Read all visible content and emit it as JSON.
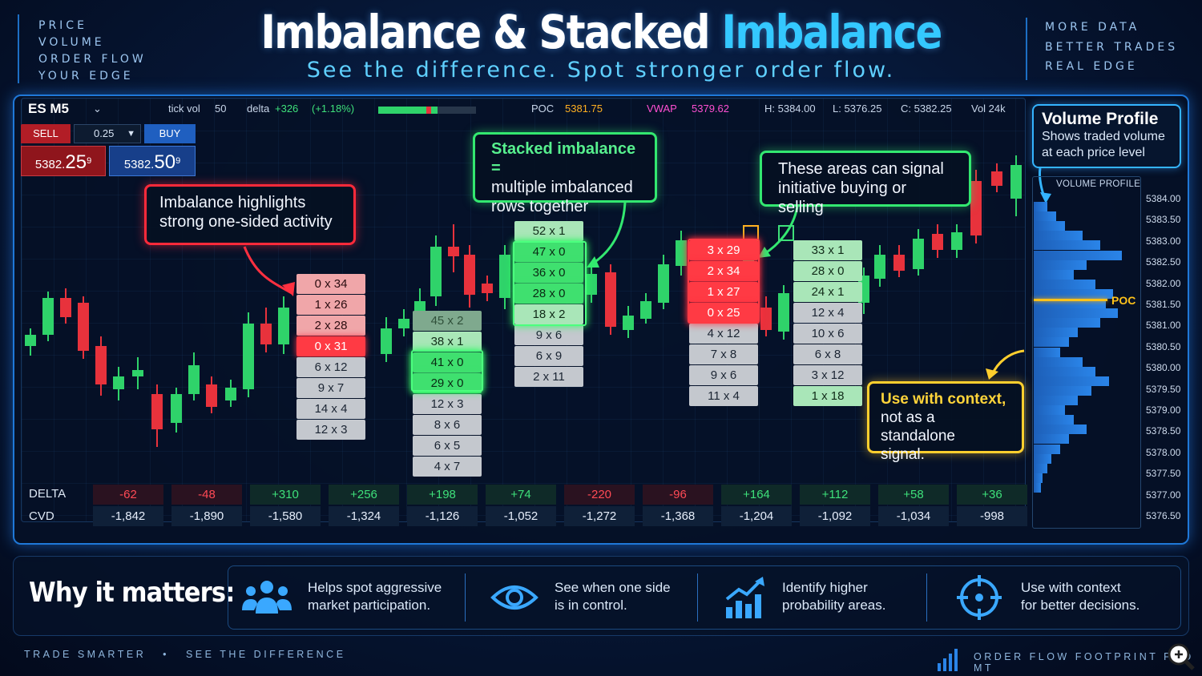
{
  "header": {
    "left_list": [
      "PRICE",
      "VOLUME",
      "ORDER FLOW",
      "YOUR EDGE"
    ],
    "title_main": "Imbalance & Stacked ",
    "title_accent": "Imbalance",
    "subtitle": "See the difference. Spot stronger order flow.",
    "right_list": [
      "MORE DATA",
      "BETTER TRADES",
      "REAL EDGE"
    ]
  },
  "toolbar": {
    "symbol": "ES M5",
    "tick_vol_label": "tick vol",
    "tick_vol_value": "50",
    "delta_label": "delta",
    "delta_value": "+326",
    "delta_pct": "(+1.18%)",
    "poc_label": "POC",
    "poc_value": "5381.75",
    "vwap_label": "VWAP",
    "vwap_value": "5379.62",
    "high": "H: 5384.00",
    "low": "L: 5376.25",
    "close": "C: 5382.25",
    "vol": "Vol 24k"
  },
  "trade": {
    "sell_label": "SELL",
    "qty": "0.25",
    "buy_label": "BUY",
    "sell_price_small": "5382.",
    "sell_price_big": "25",
    "sell_price_sup": "9",
    "buy_price_small": "5382.",
    "buy_price_big": "50",
    "buy_price_sup": "9"
  },
  "callouts": {
    "imbalance": [
      "Imbalance highlights",
      "strong one-sided activity"
    ],
    "stacked_title": "Stacked imbalance =",
    "stacked_rest": [
      "multiple imbalanced",
      "rows together"
    ],
    "areas": [
      "These areas can signal",
      "initiative buying or selling"
    ],
    "context_title": "Use with context,",
    "context_rest": [
      "not as a standalone",
      "signal."
    ]
  },
  "footprints": [
    [
      "0 x 34",
      "1 x 26",
      "2 x 28",
      "0 x 31",
      "6 x 12",
      "9 x 7",
      "14 x 4",
      "12 x 3"
    ],
    [
      "45 x 2",
      "38 x 1",
      "41 x 0",
      "29 x 0",
      "12 x 3",
      "8 x 6",
      "6 x 5",
      "4 x 7"
    ],
    [
      "52 x 1",
      "47 x 0",
      "36 x 0",
      "28 x 0",
      "18 x 2",
      "9 x 6",
      "6 x 9",
      "2 x 11"
    ],
    [
      "3 x 29",
      "2 x 34",
      "1 x 27",
      "0 x 25",
      "4 x 12",
      "7 x 8",
      "9 x 6",
      "11 x 4"
    ],
    [
      "33 x 1",
      "28 x 0",
      "24 x 1",
      "12 x 4",
      "10 x 6",
      "6 x 8",
      "3 x 12",
      "1 x 18"
    ]
  ],
  "delta_row": {
    "delta_label": "DELTA",
    "cvd_label": "CVD",
    "delta": [
      "-62",
      "-48",
      "+310",
      "+256",
      "+198",
      "+74",
      "-220",
      "-96",
      "+164",
      "+112",
      "+58",
      "+36"
    ],
    "cvd": [
      "-1,842",
      "-1,890",
      "-1,580",
      "-1,324",
      "-1,126",
      "-1,052",
      "-1,272",
      "-1,368",
      "-1,204",
      "-1,092",
      "-1,034",
      "-998"
    ]
  },
  "volume_profile": {
    "title": "Volume Profile",
    "desc": [
      "Shows traded volume",
      "at each price level"
    ],
    "header": "VOLUME PROFILE",
    "poc_label": "POC",
    "prices": [
      "5384.00",
      "5383.50",
      "5383.00",
      "5382.50",
      "5382.00",
      "5381.50",
      "5381.00",
      "5380.50",
      "5380.00",
      "5379.50",
      "5379.00",
      "5378.50",
      "5378.00",
      "5377.50",
      "5377.00",
      "5376.50"
    ],
    "levels": [
      0.15,
      0.25,
      0.35,
      0.55,
      0.75,
      1.0,
      0.6,
      0.45,
      0.7,
      0.9,
      0.82,
      0.95,
      0.75,
      0.5,
      0.4,
      0.3,
      0.55,
      0.7,
      0.85,
      0.65,
      0.5,
      0.35,
      0.45,
      0.6,
      0.4,
      0.3,
      0.2,
      0.15,
      0.1,
      0.08
    ]
  },
  "why": {
    "title": "Why it matters:",
    "items": [
      {
        "icon": "users-icon",
        "lines": [
          "Helps spot aggressive",
          "market participation."
        ]
      },
      {
        "icon": "eye-icon",
        "lines": [
          "See when one side",
          "is in control."
        ]
      },
      {
        "icon": "growth-chart-icon",
        "lines": [
          "Identify higher",
          "probability areas."
        ]
      },
      {
        "icon": "crosshair-icon",
        "lines": [
          "Use with context",
          "for better decisions."
        ]
      }
    ]
  },
  "footer": {
    "left": "TRADE SMARTER   •   SEE THE DIFFERENCE",
    "right": "ORDER FLOW FOOTPRINT PRO MT"
  },
  "colors": {
    "accent": "#34c8ff",
    "bull": "#2fd36a",
    "bear": "#e8323c",
    "poc": "#ffc21a"
  }
}
